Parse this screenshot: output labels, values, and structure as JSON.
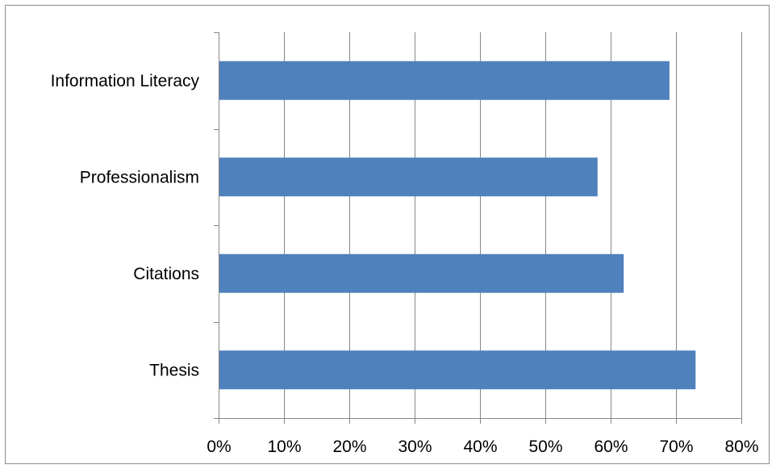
{
  "chart_data": {
    "type": "bar",
    "orientation": "horizontal",
    "title": "",
    "xlabel": "",
    "ylabel": "",
    "categories": [
      "Information Literacy",
      "Professionalism",
      "Citations",
      "Thesis"
    ],
    "values": [
      0.69,
      0.58,
      0.62,
      0.73
    ],
    "xlim": [
      0,
      0.8
    ],
    "x_ticks": [
      "0%",
      "10%",
      "20%",
      "30%",
      "40%",
      "50%",
      "60%",
      "70%",
      "80%"
    ],
    "grid": "vertical major gridlines",
    "legend": "none",
    "bar_color": "#4f81bd",
    "gridline_color": "#868686"
  }
}
